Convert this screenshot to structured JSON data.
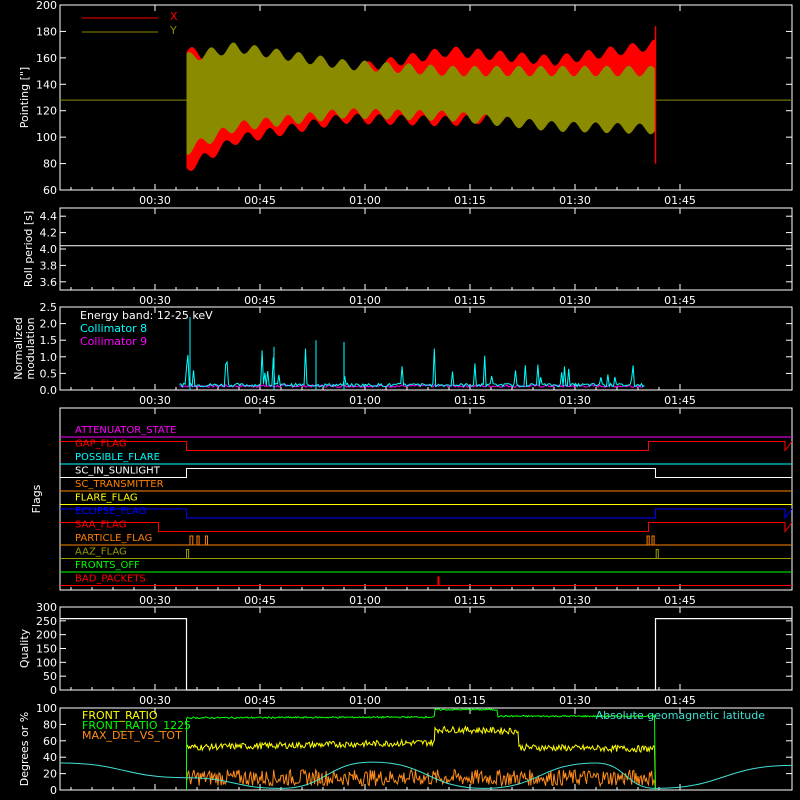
{
  "time_ticks": [
    "00:30",
    "00:45",
    "01:00",
    "01:15",
    "01:30",
    "01:45"
  ],
  "colors": {
    "x_red": "#ff0000",
    "y_olive": "#8b8b00",
    "cyan": "#00ffff",
    "magenta": "#ff00ff",
    "white": "#ffffff",
    "yellow": "#ffff00",
    "green": "#00ff00",
    "orange": "#ff8c1a",
    "blue": "#0000ff",
    "orange_flag": "#ff7f00",
    "olive_flag": "#999900",
    "teal": "#40e0d0"
  },
  "chart_data": [
    {
      "type": "line",
      "id": "pointing",
      "ylabel": "Pointing [\"]",
      "ylim": [
        60,
        200
      ],
      "y_ticks": [
        "60",
        "80",
        "100",
        "120",
        "140",
        "160",
        "180",
        "200"
      ],
      "x_ticks": [
        "00:30",
        "00:45",
        "01:00",
        "01:15",
        "01:30",
        "01:45"
      ],
      "series": [
        {
          "name": "X",
          "color": "#ff0000",
          "envelope_time_min": [
            34.5,
            41.5,
            57.0,
            72.0,
            87.0,
            101.5
          ],
          "upper": [
            165,
            158,
            150,
            165,
            158,
            170
          ],
          "lower": [
            76,
            98,
            114,
            112,
            118,
            122
          ]
        },
        {
          "name": "Y",
          "color": "#8b8b00",
          "envelope_time_min": [
            34.5,
            41.5,
            57.0,
            72.0,
            87.0,
            101.5
          ],
          "upper": [
            160,
            168,
            155,
            150,
            150,
            150
          ],
          "lower": [
            90,
            108,
            118,
            116,
            108,
            106
          ]
        }
      ],
      "baseline_value": 128
    },
    {
      "type": "line",
      "id": "roll",
      "ylabel": "Roll period [s]",
      "ylim": [
        3.5,
        4.5
      ],
      "y_ticks": [
        "3.6",
        "3.8",
        "4.0",
        "4.2",
        "4.4"
      ],
      "x_ticks": [
        "00:30",
        "00:45",
        "01:00",
        "01:15",
        "01:30",
        "01:45"
      ],
      "series": [
        {
          "name": "",
          "color": "#ffffff",
          "y": [
            4.04,
            4.04
          ]
        }
      ]
    },
    {
      "type": "line",
      "id": "modulation",
      "ylabel": "Normalized modulation",
      "ylim": [
        0,
        2.5
      ],
      "y_ticks": [
        "0.0",
        "0.5",
        "1.0",
        "1.5",
        "2.0",
        "2.5"
      ],
      "x_ticks": [
        "00:30",
        "00:45",
        "01:00",
        "01:15",
        "01:30",
        "01:45"
      ],
      "annotation": "Energy band: 12-25 keV",
      "series": [
        {
          "name": "Collimator 8",
          "color": "#00ffff"
        },
        {
          "name": "Collimator 9",
          "color": "#ff00ff"
        }
      ],
      "time_range_min": [
        33.5,
        100.0
      ]
    },
    {
      "type": "line",
      "id": "flags",
      "ylabel": "Flags",
      "x_ticks": [
        "00:30",
        "00:45",
        "01:00",
        "01:15",
        "01:30",
        "01:45"
      ],
      "series": [
        {
          "name": "ATTENUATOR_STATE",
          "color": "#ff00ff",
          "level": 0
        },
        {
          "name": "GAP_FLAG",
          "color": "#ff0000",
          "level": 0,
          "high_intervals_min": [
            [
              0,
              34.5
            ],
            [
              100.5,
              120
            ]
          ]
        },
        {
          "name": "POSSIBLE_FLARE",
          "color": "#00ffff",
          "level": 0
        },
        {
          "name": "SC_IN_SUNLIGHT",
          "color": "#ffffff",
          "level": 0,
          "high_intervals_min": [
            [
              34.5,
              101.5
            ]
          ]
        },
        {
          "name": "SC_TRANSMITTER",
          "color": "#ff7f00",
          "level": 0
        },
        {
          "name": "FLARE_FLAG",
          "color": "#ffff00",
          "level": 0
        },
        {
          "name": "ECLIPSE_FLAG",
          "color": "#0000ff",
          "level": 0,
          "high_intervals_min": [
            [
              0,
              34.5
            ],
            [
              101.5,
              120
            ]
          ]
        },
        {
          "name": "SAA_FLAG",
          "color": "#ff0000",
          "level": 0,
          "high_intervals_min": [
            [
              0,
              30.5
            ],
            [
              100.5,
              120
            ]
          ]
        },
        {
          "name": "PARTICLE_FLAG",
          "color": "#ff7f00",
          "level": 0
        },
        {
          "name": "AAZ_FLAG",
          "color": "#999900",
          "level": 0
        },
        {
          "name": "FRONTS_OFF",
          "color": "#00ff00",
          "level": 0
        },
        {
          "name": "BAD_PACKETS",
          "color": "#ff0000",
          "level": 0,
          "spikes_min": [
            70.5
          ]
        }
      ]
    },
    {
      "type": "line",
      "id": "quality",
      "ylabel": "Quality",
      "ylim": [
        0,
        300
      ],
      "y_ticks": [
        "0",
        "50",
        "100",
        "150",
        "200",
        "250",
        "300"
      ],
      "x_ticks": [
        "00:30",
        "00:45",
        "01:00",
        "01:15",
        "01:30",
        "01:45"
      ],
      "series": [
        {
          "name": "",
          "color": "#ffffff",
          "high_value": 258,
          "high_intervals_min": [
            [
              0,
              34.5
            ],
            [
              101.5,
              120
            ]
          ]
        }
      ]
    },
    {
      "type": "line",
      "id": "ratios",
      "ylabel": "Degrees or %",
      "ylim": [
        0,
        100
      ],
      "y_ticks": [
        "0",
        "20",
        "40",
        "60",
        "80",
        "100"
      ],
      "x_ticks": [
        "00:30",
        "00:45",
        "01:00",
        "01:15",
        "01:30",
        "01:45"
      ],
      "series": [
        {
          "name": "FRONT_RATIO",
          "color": "#ffff00",
          "segments": [
            {
              "t": [
                34.5,
                70
              ],
              "y": [
                52,
                58
              ]
            },
            {
              "t": [
                70,
                82
              ],
              "y": [
                74,
                72
              ]
            },
            {
              "t": [
                82,
                101.5
              ],
              "y": [
                52,
                50
              ]
            }
          ]
        },
        {
          "name": "FRONT_RATIO_1225",
          "color": "#00ff00",
          "segments": [
            {
              "t": [
                34.5,
                70
              ],
              "y": [
                88,
                89
              ]
            },
            {
              "t": [
                70,
                79
              ],
              "y": [
                98,
                98
              ]
            },
            {
              "t": [
                79,
                101.5
              ],
              "y": [
                90,
                90
              ]
            }
          ]
        },
        {
          "name": "MAX_DET_VS_TOT",
          "color": "#ff8c1a",
          "segments": [
            {
              "t": [
                34.5,
                101.5
              ],
              "y": [
                15,
                15
              ]
            }
          ]
        },
        {
          "name": "Absolute geomagnetic latitude",
          "color": "#40e0d0",
          "x": [
            0,
            34.5,
            48,
            61,
            77,
            93,
            101.5,
            120
          ],
          "y": [
            33,
            15,
            2,
            34,
            2,
            33,
            2,
            30
          ]
        }
      ]
    }
  ]
}
